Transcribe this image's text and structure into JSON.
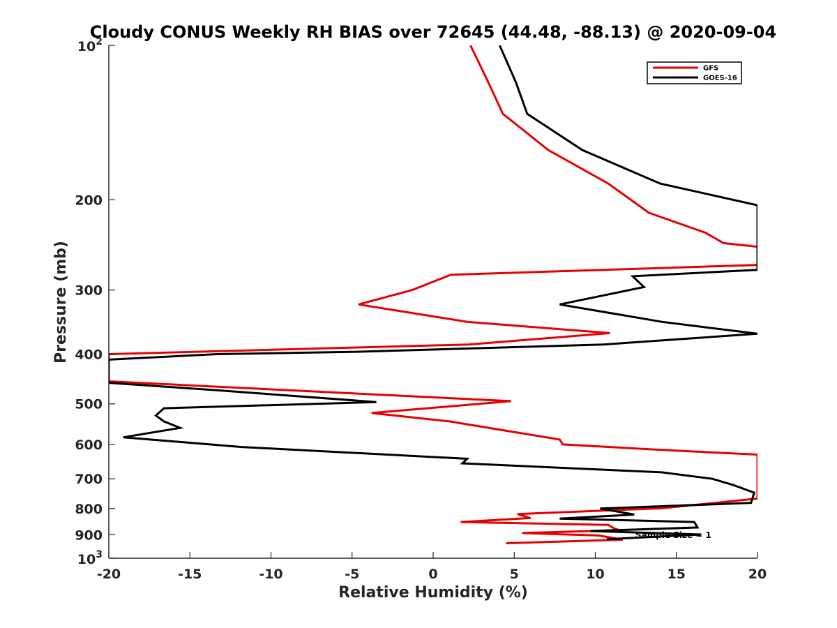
{
  "chart_data": {
    "type": "line",
    "title": "Cloudy CONUS Weekly RH BIAS over 72645 (44.48, -88.13) @ 2020-09-04",
    "xlabel": "Relative Humidity (%)",
    "ylabel": "Pressure (mb)",
    "xlim": [
      -20,
      20
    ],
    "ylim": [
      100,
      1000
    ],
    "yscale": "log",
    "y_reversed": true,
    "grid": false,
    "legend_placement": "top-right",
    "x_ticks": [
      "-20",
      "-15",
      "-10",
      "-5",
      "0",
      "5",
      "10",
      "15",
      "20"
    ],
    "y_ticks": [
      {
        "value": 100,
        "base": "10",
        "exp": "2"
      },
      {
        "value": 200,
        "label": "200"
      },
      {
        "value": 300,
        "label": "300"
      },
      {
        "value": 400,
        "label": "400"
      },
      {
        "value": 500,
        "label": "500"
      },
      {
        "value": 600,
        "label": "600"
      },
      {
        "value": 700,
        "label": "700"
      },
      {
        "value": 800,
        "label": "800"
      },
      {
        "value": 900,
        "label": "900"
      },
      {
        "value": 1000,
        "base": "10",
        "exp": "3"
      }
    ],
    "annotation": "Sample Size = 1",
    "series": [
      {
        "name": "GFS",
        "color": "#e60000",
        "points": [
          [
            2.3,
            100
          ],
          [
            3.4,
            118
          ],
          [
            4.3,
            136
          ],
          [
            7.1,
            160
          ],
          [
            10.8,
            186
          ],
          [
            13.3,
            212
          ],
          [
            16.8,
            232
          ],
          [
            17.9,
            243
          ],
          [
            20.0,
            247
          ],
          [
            20.0,
            268
          ],
          [
            1.1,
            280
          ],
          [
            -1.3,
            300
          ],
          [
            -4.6,
            320
          ],
          [
            2.1,
            346
          ],
          [
            10.9,
            364
          ],
          [
            2.2,
            383
          ],
          [
            -20.0,
            400
          ],
          [
            -20.0,
            452
          ],
          [
            4.8,
            494
          ],
          [
            -3.8,
            521
          ],
          [
            1.0,
            541
          ],
          [
            7.8,
            587
          ],
          [
            8.0,
            600
          ],
          [
            14.1,
            615
          ],
          [
            20.0,
            628
          ],
          [
            20.0,
            765
          ],
          [
            14.1,
            799
          ],
          [
            5.2,
            820
          ],
          [
            6.0,
            835
          ],
          [
            1.7,
            850
          ],
          [
            10.8,
            861
          ],
          [
            11.2,
            876
          ],
          [
            11.5,
            882
          ],
          [
            5.5,
            893
          ],
          [
            10.2,
            903
          ],
          [
            11.7,
            920
          ],
          [
            4.5,
            935
          ]
        ]
      },
      {
        "name": "GOES-16",
        "color": "#000000",
        "points": [
          [
            4.1,
            100
          ],
          [
            5.1,
            118
          ],
          [
            5.8,
            136
          ],
          [
            9.2,
            160
          ],
          [
            14.0,
            186
          ],
          [
            20.0,
            205
          ],
          [
            20.0,
            274
          ],
          [
            12.3,
            282
          ],
          [
            13.0,
            296
          ],
          [
            7.8,
            320
          ],
          [
            14.1,
            346
          ],
          [
            20.0,
            365
          ],
          [
            10.5,
            383
          ],
          [
            -5.0,
            396
          ],
          [
            -13.3,
            400
          ],
          [
            -20.0,
            410
          ],
          [
            -20.0,
            455
          ],
          [
            -13.5,
            470
          ],
          [
            -3.5,
            496
          ],
          [
            -16.6,
            510
          ],
          [
            -17.1,
            527
          ],
          [
            -16.6,
            541
          ],
          [
            -15.6,
            557
          ],
          [
            -19.1,
            581
          ],
          [
            -11.8,
            607
          ],
          [
            2.1,
            640
          ],
          [
            1.8,
            653
          ],
          [
            14.1,
            680
          ],
          [
            17.2,
            700
          ],
          [
            18.5,
            720
          ],
          [
            19.8,
            745
          ],
          [
            19.6,
            780
          ],
          [
            10.3,
            800
          ],
          [
            12.4,
            822
          ],
          [
            7.8,
            837
          ],
          [
            16.1,
            850
          ],
          [
            16.3,
            871
          ],
          [
            9.7,
            885
          ],
          [
            16.5,
            899
          ],
          [
            10.7,
            918
          ]
        ]
      }
    ]
  }
}
